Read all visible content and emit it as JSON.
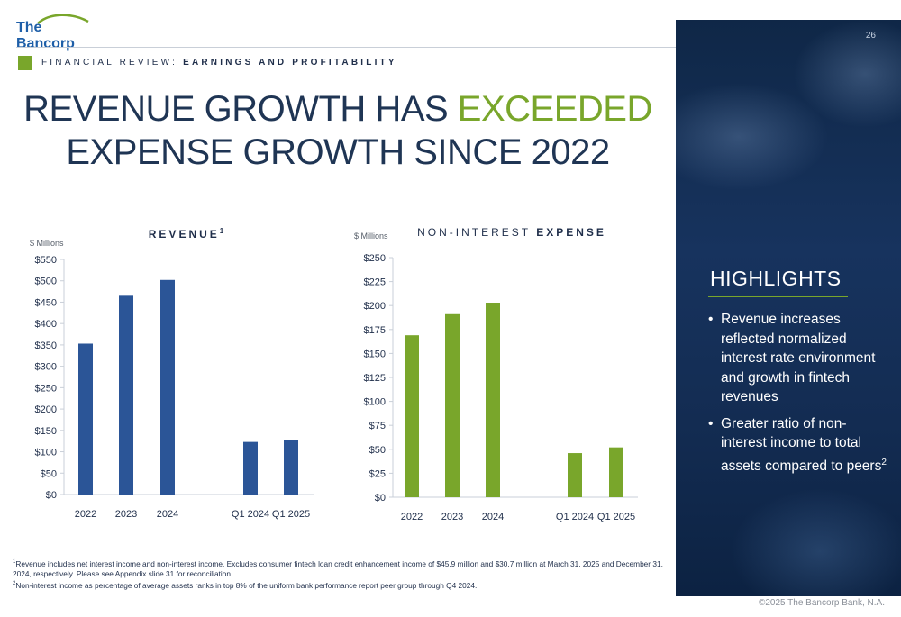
{
  "brand": {
    "logo_text": "The Bancorp",
    "copyright": "©2025 The Bancorp Bank, N.A."
  },
  "page_number": "26",
  "section": {
    "prefix": "FINANCIAL REVIEW: ",
    "bold": "EARNINGS AND PROFITABILITY"
  },
  "title": {
    "line1_a": "REVENUE GROWTH HAS ",
    "line1_b": "EXCEEDED",
    "line2": "EXPENSE GROWTH SINCE 2022"
  },
  "colors": {
    "revenue_bar": "#2b5597",
    "expense_bar": "#79a62b",
    "accent": "#79a62b",
    "title": "#1f3554"
  },
  "chart_data": [
    {
      "type": "bar",
      "title_bold": "REVENUE",
      "title_sup": "1",
      "ylabel": "$ Millions",
      "categories": [
        "2022",
        "2023",
        "2024",
        "Q1 2024",
        "Q1 2025"
      ],
      "values": [
        353,
        465,
        502,
        123,
        128
      ],
      "ylim": [
        0,
        550
      ],
      "yticks": [
        "$0",
        "$50",
        "$100",
        "$150",
        "$200",
        "$250",
        "$300",
        "$350",
        "$400",
        "$450",
        "$500",
        "$550"
      ],
      "grid": false
    },
    {
      "type": "bar",
      "title_light": "NON-INTEREST ",
      "title_bold": "EXPENSE",
      "ylabel": "$ Millions",
      "categories": [
        "2022",
        "2023",
        "2024",
        "Q1 2024",
        "Q1 2025"
      ],
      "values": [
        169,
        191,
        203,
        46,
        52
      ],
      "ylim": [
        0,
        250
      ],
      "yticks": [
        "$0",
        "$25",
        "$50",
        "$75",
        "$100",
        "$125",
        "$150",
        "$175",
        "$200",
        "$225",
        "$250"
      ],
      "grid": false
    }
  ],
  "highlights": {
    "title": "HIGHLIGHTS",
    "bullet": "•",
    "items": [
      {
        "text": "Revenue increases reflected normalized interest rate environment and growth in fintech revenues",
        "sup": ""
      },
      {
        "text": "Greater ratio of non-interest income to total assets compared to peers",
        "sup": "2"
      }
    ]
  },
  "footnotes": {
    "f1_mark": "1",
    "f1": "Revenue includes net interest income and non-interest income. Excludes consumer fintech loan credit enhancement income of $45.9 million and $30.7 million at March 31, 2025 and December 31, 2024, respectively. Please see Appendix slide 31 for reconciliation.",
    "f2_mark": "2",
    "f2": "Non-interest income as percentage of average assets ranks in top 8% of the uniform bank performance report peer group through Q4 2024."
  }
}
